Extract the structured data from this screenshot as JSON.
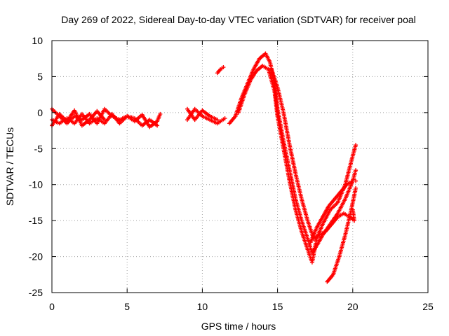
{
  "chart_data": {
    "type": "scatter",
    "title": "Day 269 of 2022, Sidereal Day-to-day VTEC variation (SDTVAR) for receiver poal",
    "xlabel": "GPS time / hours",
    "ylabel": "SDTVAR / TECUs",
    "xlim": [
      0,
      25
    ],
    "ylim": [
      -25,
      10
    ],
    "x_ticks": [
      0,
      5,
      10,
      15,
      20,
      25
    ],
    "y_ticks": [
      -25,
      -20,
      -15,
      -10,
      -5,
      0,
      5,
      10
    ],
    "grid": true,
    "marker": "+",
    "series": [
      {
        "name": "SDTVAR",
        "color": "#ff0000",
        "segments": [
          {
            "x": [
              0,
              0.5,
              1,
              1.5,
              2,
              2.5,
              3,
              3.5,
              4,
              4.5,
              5,
              5.5,
              6,
              6.5,
              7,
              7.2
            ],
            "y": [
              0.5,
              -0.5,
              -1.5,
              -0.5,
              -1.0,
              -0.2,
              -1.5,
              0.5,
              -0.5,
              -1.0,
              -0.5,
              -1.2,
              -0.3,
              -2.0,
              -1.2,
              -0.2
            ]
          },
          {
            "x": [
              0,
              0.5,
              1,
              1.5,
              2,
              2.5,
              3,
              3.5,
              4,
              4.5,
              5,
              5.5,
              6,
              6.5,
              7
            ],
            "y": [
              -1.0,
              -1.5,
              -0.8,
              -1.5,
              -0.2,
              -1.5,
              -0.8,
              -1.5,
              -0.2,
              -1.5,
              -0.5,
              -0.8,
              -1.8,
              -1.0,
              -1.8
            ]
          },
          {
            "x": [
              0,
              0.5,
              1,
              1.5,
              2,
              2.5,
              3,
              3.5
            ],
            "y": [
              -1.8,
              -0.2,
              -1.2,
              0.3,
              -1.8,
              -1.0,
              0.2,
              -1.0
            ]
          },
          {
            "x": [
              9,
              9.5,
              10,
              10.5,
              11,
              11.5
            ],
            "y": [
              -1.0,
              0.5,
              -0.5,
              -1.0,
              -1.5,
              -0.8
            ]
          },
          {
            "x": [
              9,
              9.5,
              10,
              10.5,
              11
            ],
            "y": [
              0.5,
              -1.0,
              0.3,
              -0.5,
              -1.0
            ]
          },
          {
            "x": [
              11,
              11.2,
              11.4
            ],
            "y": [
              5.5,
              6.0,
              6.3
            ]
          },
          {
            "x": [
              11.8,
              12.2,
              12.6,
              13,
              13.4,
              13.8,
              14.2,
              14.5,
              14.8,
              15,
              15.4,
              15.8,
              16.2,
              16.6,
              17,
              17.3,
              17.6,
              18,
              18.5,
              19,
              19.5,
              20,
              20.2
            ],
            "y": [
              -1.5,
              -0.5,
              2.0,
              4.0,
              6.0,
              7.5,
              8.2,
              7.0,
              4.0,
              0.5,
              -4.0,
              -8.0,
              -12.0,
              -15.0,
              -17.5,
              -19.5,
              -18.5,
              -17.0,
              -15.5,
              -14.0,
              -12.0,
              -9.5,
              -8.0
            ]
          },
          {
            "x": [
              12.4,
              12.8,
              13.2,
              13.6,
              14,
              14.4,
              14.8,
              15,
              15.4,
              15.8,
              16.2,
              16.6,
              17,
              17.3,
              17.6,
              18,
              18.5,
              19,
              19.5,
              20,
              20.2
            ],
            "y": [
              0.0,
              2.5,
              4.5,
              5.8,
              6.5,
              6.0,
              3.0,
              -0.5,
              -5.0,
              -9.5,
              -13.5,
              -16.5,
              -19.0,
              -20.8,
              -17.5,
              -15.5,
              -13.5,
              -12.5,
              -10.0,
              -6.0,
              -4.5
            ]
          },
          {
            "x": [
              14.6,
              15.0,
              15.4,
              15.8,
              16.2,
              16.6,
              17,
              17.4,
              17.8,
              18.2,
              18.6,
              19.0,
              19.4,
              19.8,
              20.1
            ],
            "y": [
              6.0,
              3.5,
              0.0,
              -4.5,
              -8.5,
              -12.0,
              -15.0,
              -17.5,
              -17.0,
              -16.5,
              -15.5,
              -14.5,
              -14.0,
              -14.5,
              -15.0
            ]
          },
          {
            "x": [
              18.3,
              18.7,
              19.1,
              19.5,
              19.9,
              20.2
            ],
            "y": [
              -23.5,
              -22.5,
              -20.0,
              -17.0,
              -13.5,
              -10.5
            ]
          },
          {
            "x": [
              17.2,
              17.6,
              18.0,
              18.4,
              18.8,
              19.2,
              19.6,
              20.0,
              20.2
            ],
            "y": [
              -18.0,
              -16.0,
              -14.5,
              -13.0,
              -12.0,
              -11.0,
              -10.0,
              -9.5,
              -9.5
            ]
          },
          {
            "x": [
              20.0,
              20.1
            ],
            "y": [
              -13.5,
              -15.0
            ]
          }
        ]
      }
    ]
  }
}
